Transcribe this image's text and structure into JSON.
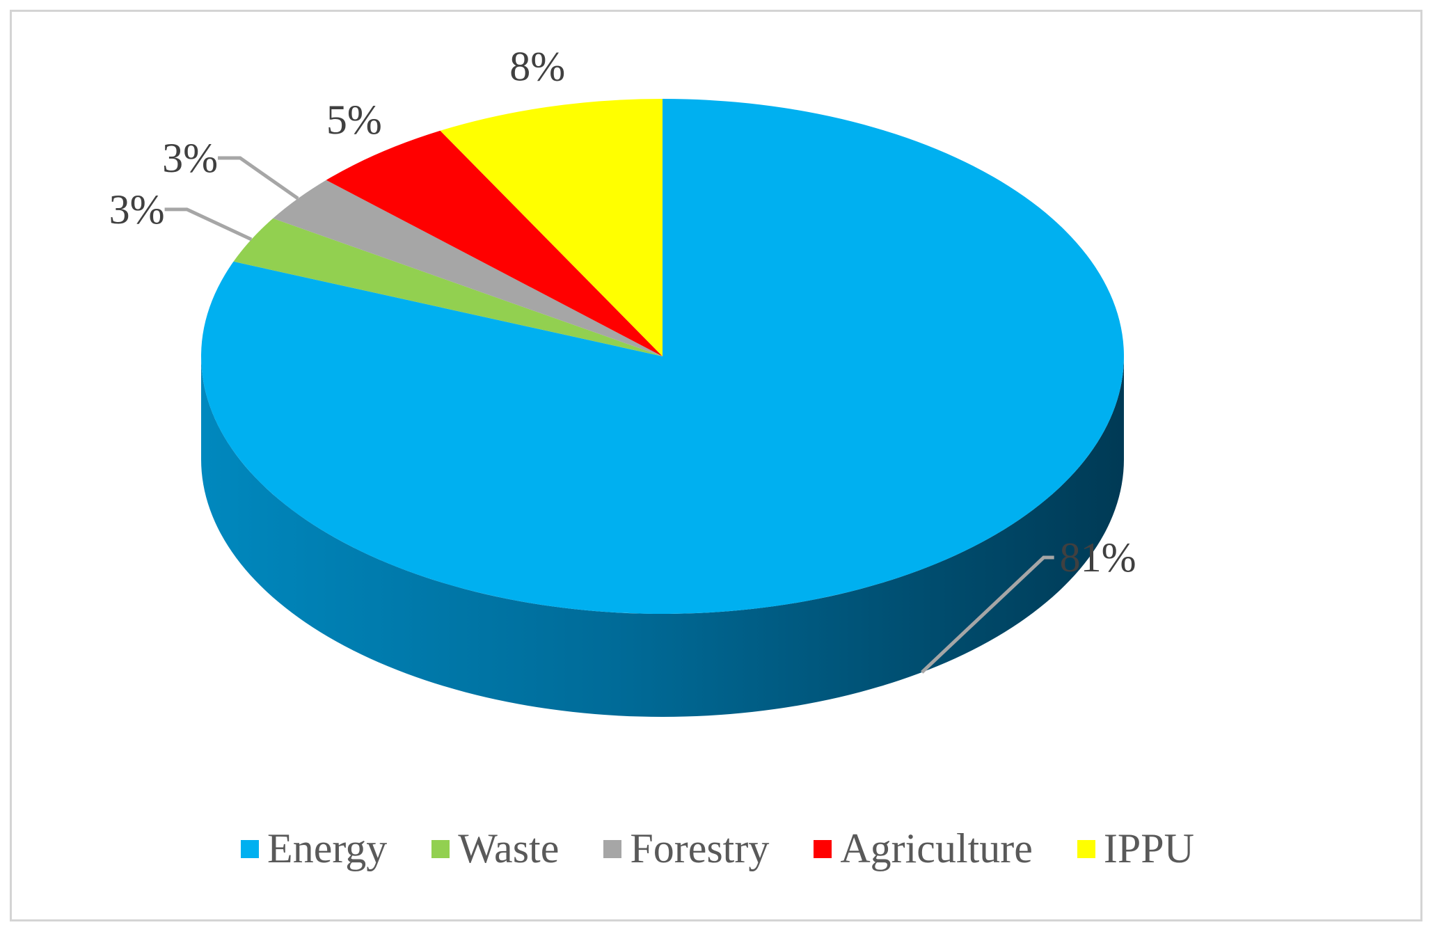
{
  "chart_data": {
    "type": "pie",
    "title": "",
    "style": "3d",
    "categories": [
      "Energy",
      "Waste",
      "Forestry",
      "Agriculture",
      "IPPU"
    ],
    "values": [
      81,
      3,
      3,
      5,
      8
    ],
    "labels": [
      "81%",
      "3%",
      "3%",
      "5%",
      "8%"
    ],
    "colors": [
      "#00B0F0",
      "#92D050",
      "#A6A6A6",
      "#FF0000",
      "#FFFF00"
    ],
    "legend_position": "bottom"
  }
}
